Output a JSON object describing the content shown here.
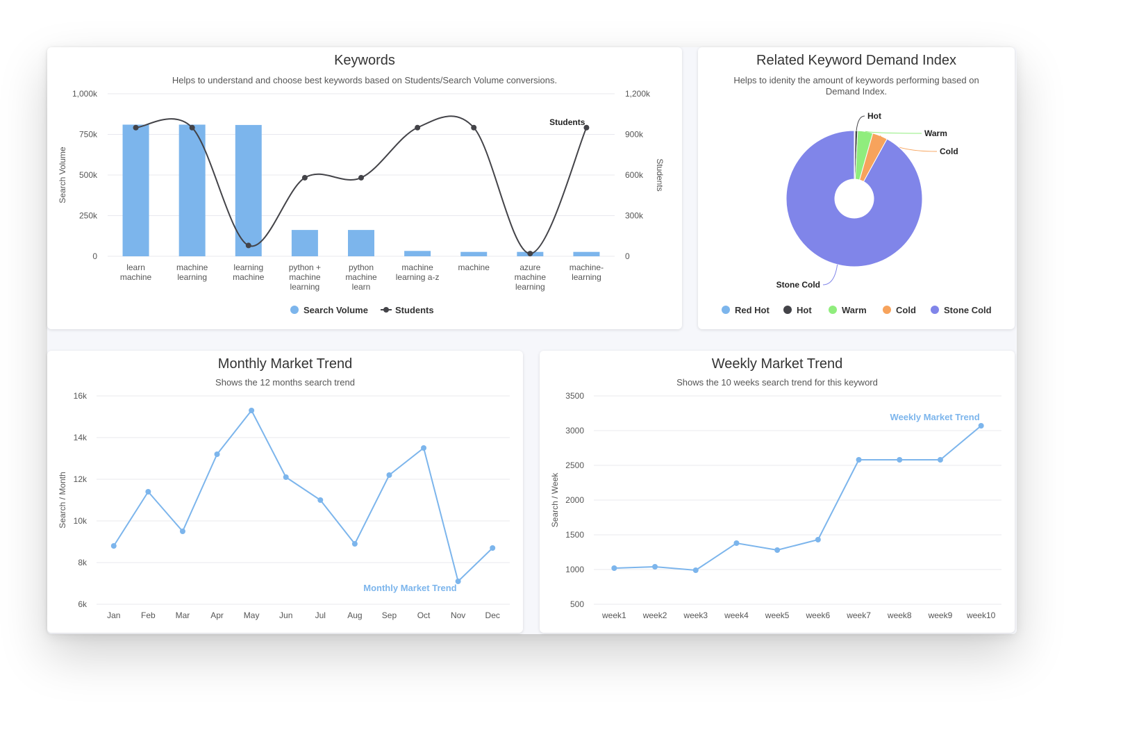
{
  "colors": {
    "bar": "#7cb5ec",
    "students_line": "#434348",
    "monthly_line": "#7cb5ec",
    "weekly_line": "#7cb5ec",
    "red_hot": "#7cb5ec",
    "hot": "#434348",
    "warm": "#90ed7d",
    "cold": "#f7a35c",
    "stone_cold": "#8085e9"
  },
  "chart_data": [
    {
      "type": "bar",
      "title": "Keywords",
      "subtitle": "Helps to understand and choose best keywords based on Students/Search Volume conversions.",
      "categories": [
        [
          "learn",
          "machine"
        ],
        [
          "machine",
          "learning"
        ],
        [
          "learning",
          "machine"
        ],
        [
          "python +",
          "machine",
          "learning"
        ],
        [
          "python",
          "machine",
          "learn"
        ],
        [
          "machine",
          "learning a-z"
        ],
        [
          "machine"
        ],
        [
          "azure",
          "machine",
          "learning"
        ],
        [
          "machine-",
          "learning"
        ]
      ],
      "ylabel": "Search Volume",
      "ylim": [
        0,
        1000000
      ],
      "yticks": [
        "0",
        "250k",
        "500k",
        "750k",
        "1,000k"
      ],
      "y2label": "Students",
      "y2lim": [
        0,
        1200000
      ],
      "y2ticks": [
        "0",
        "300k",
        "600k",
        "900k",
        "1,200k"
      ],
      "series": [
        {
          "name": "Search Volume",
          "type": "bar",
          "axis": "left",
          "values": [
            810000,
            810000,
            808000,
            162000,
            162000,
            33000,
            27000,
            27000,
            27000
          ]
        },
        {
          "name": "Students",
          "type": "line",
          "axis": "right",
          "values": [
            950000,
            950000,
            80000,
            580000,
            580000,
            950000,
            950000,
            20000,
            950000
          ],
          "end_label": "Students"
        }
      ],
      "legend": [
        "Search Volume",
        "Students"
      ],
      "legend_position": "bottom",
      "grid": true
    },
    {
      "type": "pie",
      "title": "Related Keyword Demand Index",
      "subtitle_lines": [
        "Helps to idenity the amount of keywords performing based on",
        "Demand Index."
      ],
      "slices": [
        {
          "name": "Red Hot",
          "value": 0.2,
          "label": ""
        },
        {
          "name": "Hot",
          "value": 0.6,
          "label": "Hot"
        },
        {
          "name": "Warm",
          "value": 3.6,
          "label": "Warm"
        },
        {
          "name": "Cold",
          "value": 3.6,
          "label": "Cold"
        },
        {
          "name": "Stone Cold",
          "value": 92.0,
          "label": "Stone Cold"
        }
      ],
      "legend": [
        "Red Hot",
        "Hot",
        "Warm",
        "Cold",
        "Stone Cold"
      ],
      "legend_position": "bottom",
      "inner_hole": true
    },
    {
      "type": "line",
      "title": "Monthly Market Trend",
      "subtitle": "Shows the 12 months search trend",
      "categories": [
        "Jan",
        "Feb",
        "Mar",
        "Apr",
        "May",
        "Jun",
        "Jul",
        "Aug",
        "Sep",
        "Oct",
        "Nov",
        "Dec"
      ],
      "ylabel": "Search / Month",
      "ylim": [
        6000,
        16000
      ],
      "yticks": [
        "6k",
        "8k",
        "10k",
        "12k",
        "14k",
        "16k"
      ],
      "series": [
        {
          "name": "Monthly Market Trend",
          "values": [
            8800,
            11400,
            9500,
            13200,
            15300,
            12100,
            11000,
            8900,
            12200,
            13500,
            7100,
            8700
          ]
        }
      ],
      "grid": true
    },
    {
      "type": "line",
      "title": "Weekly Market Trend",
      "subtitle": "Shows the 10 weeks search trend for this keyword",
      "categories": [
        "week1",
        "week2",
        "week3",
        "week4",
        "week5",
        "week6",
        "week7",
        "week8",
        "week9",
        "week10"
      ],
      "ylabel": "Search / Week",
      "ylim": [
        500,
        3500
      ],
      "yticks": [
        "500",
        "1000",
        "1500",
        "2000",
        "2500",
        "3000",
        "3500"
      ],
      "series": [
        {
          "name": "Weekly Market Trend",
          "values": [
            1020,
            1040,
            990,
            1380,
            1280,
            1430,
            2580,
            2580,
            2580,
            3070
          ]
        }
      ],
      "grid": true
    }
  ]
}
